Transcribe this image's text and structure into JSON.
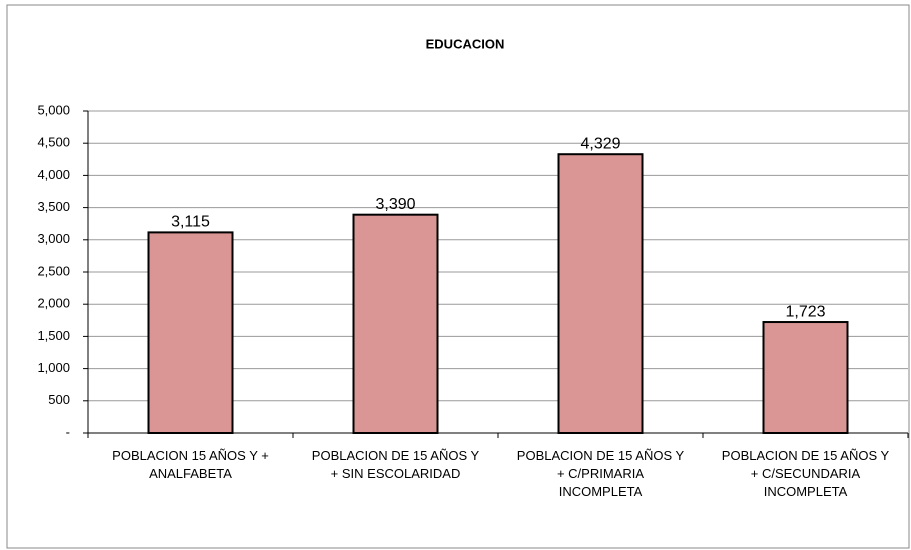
{
  "chart_data": {
    "type": "bar",
    "title": "EDUCACION",
    "categories": [
      "POBLACION 15 AÑOS Y + ANALFABETA",
      "POBLACION DE 15 AÑOS Y + SIN ESCOLARIDAD",
      "POBLACION DE 15 AÑOS Y + C/PRIMARIA INCOMPLETA",
      "POBLACION DE 15 AÑOS Y + C/SECUNDARIA INCOMPLETA"
    ],
    "values": [
      3115,
      3390,
      4329,
      1723
    ],
    "value_labels": [
      "3,115",
      "3,390",
      "4,329",
      "1,723"
    ],
    "color": "#d99694",
    "ylim": [
      0,
      5000
    ],
    "yticks": [
      {
        "value": 0,
        "label": "-"
      },
      500,
      {
        "value": 1000,
        "label": "1,000"
      },
      {
        "value": 1500,
        "label": "1,500"
      },
      {
        "value": 2000,
        "label": "2,000"
      },
      {
        "value": 2500,
        "label": "2,500"
      },
      {
        "value": 3000,
        "label": "3,000"
      },
      {
        "value": 3500,
        "label": "3,500"
      },
      {
        "value": 4000,
        "label": "4,000"
      },
      {
        "value": 4500,
        "label": "4,500"
      },
      {
        "value": 5000,
        "label": "5,000"
      }
    ],
    "grid": true
  }
}
